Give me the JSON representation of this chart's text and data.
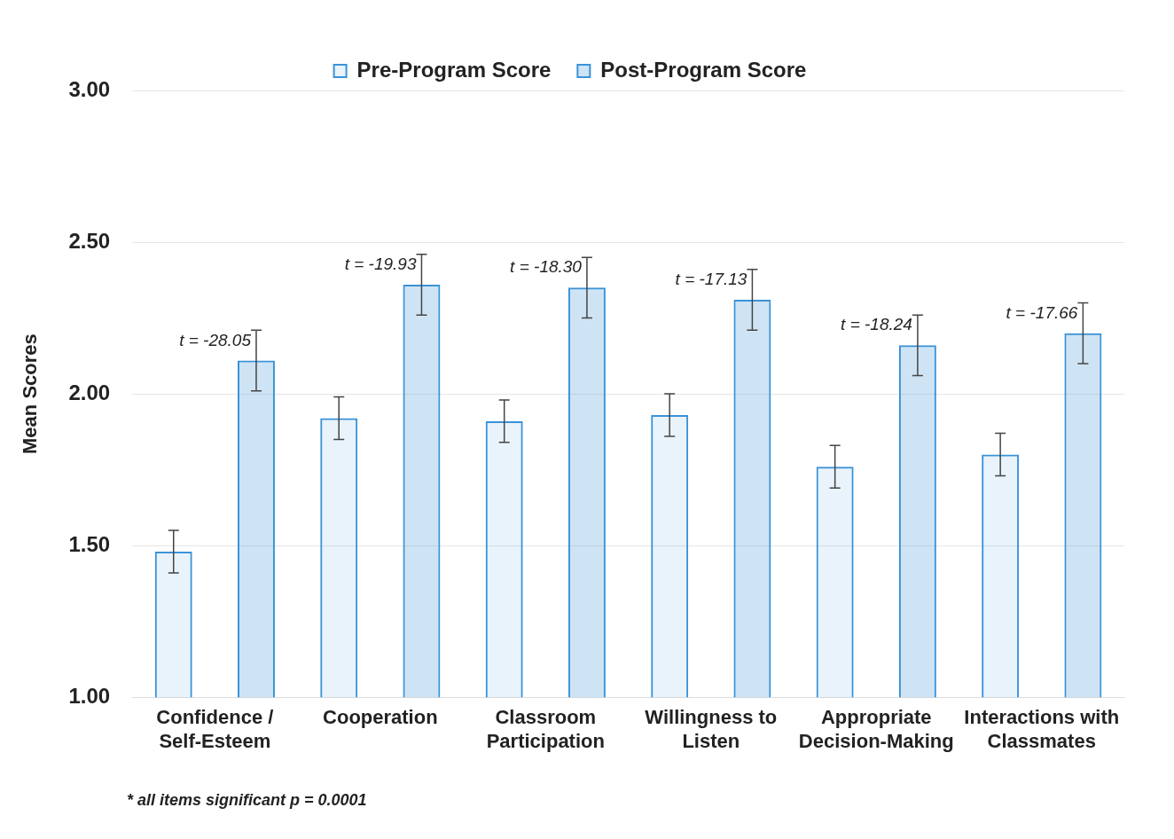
{
  "chart_data": {
    "type": "bar",
    "categories": [
      "Confidence / Self-Esteem",
      "Cooperation",
      "Classroom Participation",
      "Willingness to Listen",
      "Appropriate Decision-Making",
      "Interactions with Classmates"
    ],
    "series": [
      {
        "name": "Pre-Program Score",
        "color": "#3a93d8",
        "values": [
          1.48,
          1.92,
          1.91,
          1.93,
          1.76,
          1.8
        ],
        "errors": [
          0.07,
          0.07,
          0.07,
          0.07,
          0.07,
          0.07
        ]
      },
      {
        "name": "Post-Program Score",
        "color": "#3a93d8",
        "values": [
          2.11,
          2.36,
          2.35,
          2.31,
          2.16,
          2.2
        ],
        "errors": [
          0.1,
          0.1,
          0.1,
          0.1,
          0.1,
          0.1
        ]
      }
    ],
    "ylabel": "Mean Scores",
    "ylim": [
      1,
      3
    ],
    "yticks": [
      {
        "value": 1,
        "label": "1.00"
      },
      {
        "value": 1.5,
        "label": "1.50"
      },
      {
        "value": 2,
        "label": "2.00"
      },
      {
        "value": 2.5,
        "label": "2.50"
      },
      {
        "value": 3,
        "label": "3.00"
      }
    ],
    "grid": "y",
    "legend": "top",
    "annotations": [
      "t = -28.05",
      "t = -19.93",
      "t = -18.30",
      "t = -17.13",
      "t = -18.24",
      "t = -17.66",
      "* all items significant p = 0.0001"
    ]
  }
}
